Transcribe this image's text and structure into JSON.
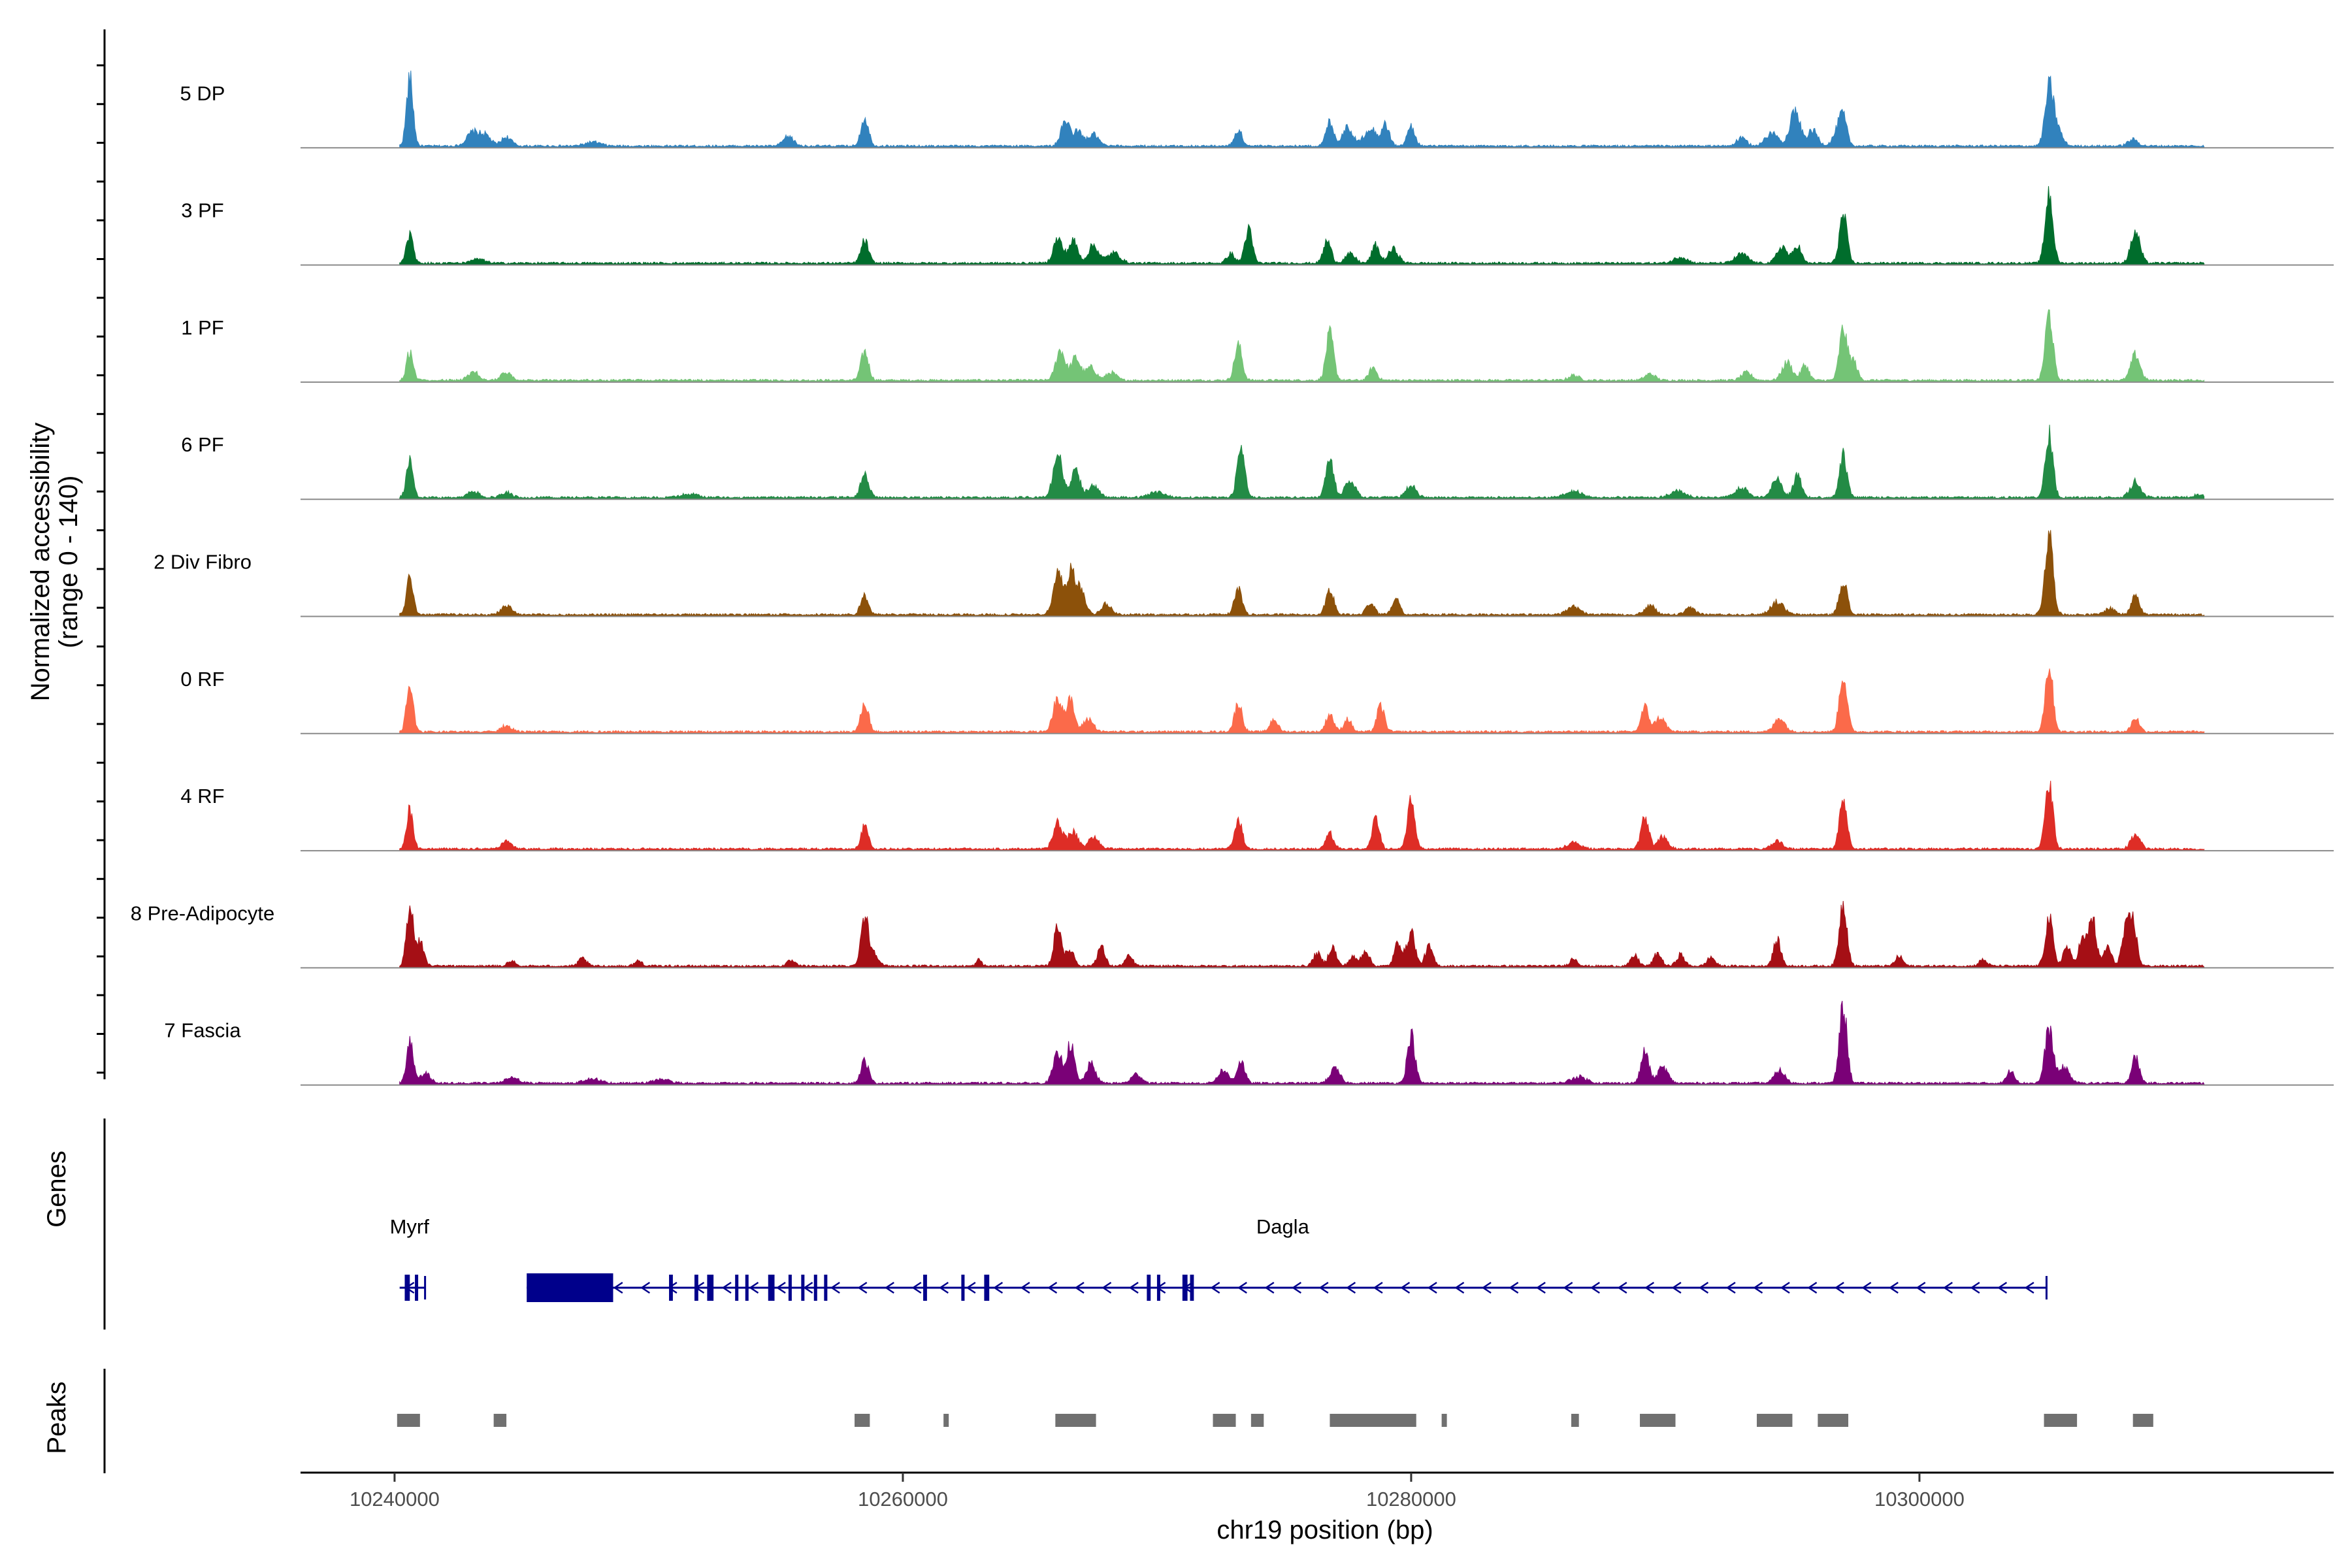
{
  "chart_data": {
    "type": "area",
    "title": "",
    "ylabel": "Normalized accessibility\n(range 0 - 140)",
    "ylim": [
      0,
      140
    ],
    "xlabel": "chr19 position (bp)",
    "xlim": [
      10236300,
      10316300
    ],
    "x_ticks": [
      10240000,
      10260000,
      10280000,
      10300000
    ],
    "x_tick_labels": [
      "10240000",
      "10260000",
      "10280000",
      "10300000"
    ],
    "data_range": [
      10240200,
      10311200
    ],
    "tracks": [
      {
        "name": "5 DP",
        "color": "#3182bd",
        "peaks": [
          [
            10240600,
            105,
            130
          ],
          [
            10243100,
            22,
            250
          ],
          [
            10243600,
            15,
            200
          ],
          [
            10244400,
            14,
            200
          ],
          [
            10247800,
            6,
            300
          ],
          [
            10255500,
            15,
            200
          ],
          [
            10258500,
            45,
            150
          ],
          [
            10266400,
            38,
            180
          ],
          [
            10266900,
            22,
            180
          ],
          [
            10267500,
            18,
            200
          ],
          [
            10273200,
            25,
            150
          ],
          [
            10276800,
            38,
            150
          ],
          [
            10277500,
            30,
            200
          ],
          [
            10278400,
            28,
            250
          ],
          [
            10279000,
            32,
            150
          ],
          [
            10280000,
            30,
            150
          ],
          [
            10293000,
            12,
            200
          ],
          [
            10294200,
            20,
            250
          ],
          [
            10295100,
            55,
            200
          ],
          [
            10295800,
            24,
            200
          ],
          [
            10296800,
            22,
            200
          ],
          [
            10297000,
            36,
            150
          ],
          [
            10305100,
            85,
            160
          ],
          [
            10305400,
            28,
            200
          ],
          [
            10308400,
            10,
            200
          ]
        ]
      },
      {
        "name": "3 PF",
        "color": "#006d2c",
        "peaks": [
          [
            10240600,
            45,
            130
          ],
          [
            10243300,
            6,
            250
          ],
          [
            10258500,
            35,
            150
          ],
          [
            10266100,
            38,
            180
          ],
          [
            10266700,
            35,
            180
          ],
          [
            10267500,
            28,
            200
          ],
          [
            10268300,
            16,
            250
          ],
          [
            10272900,
            15,
            150
          ],
          [
            10273600,
            52,
            150
          ],
          [
            10276700,
            35,
            150
          ],
          [
            10277600,
            14,
            200
          ],
          [
            10278600,
            28,
            150
          ],
          [
            10279300,
            22,
            200
          ],
          [
            10290600,
            10,
            250
          ],
          [
            10293000,
            14,
            250
          ],
          [
            10294600,
            26,
            200
          ],
          [
            10295200,
            28,
            150
          ],
          [
            10297000,
            75,
            150
          ],
          [
            10305100,
            110,
            150
          ],
          [
            10308500,
            48,
            180
          ]
        ]
      },
      {
        "name": "1 PF",
        "color": "#74c476",
        "peaks": [
          [
            10240600,
            45,
            130
          ],
          [
            10243100,
            14,
            200
          ],
          [
            10244400,
            12,
            200
          ],
          [
            10258500,
            45,
            150
          ],
          [
            10266200,
            48,
            180
          ],
          [
            10266800,
            35,
            180
          ],
          [
            10267400,
            20,
            200
          ],
          [
            10268200,
            12,
            200
          ],
          [
            10273200,
            55,
            150
          ],
          [
            10276800,
            72,
            150
          ],
          [
            10278500,
            20,
            150
          ],
          [
            10286400,
            8,
            200
          ],
          [
            10289400,
            10,
            200
          ],
          [
            10293200,
            12,
            200
          ],
          [
            10294800,
            28,
            200
          ],
          [
            10295500,
            24,
            150
          ],
          [
            10297000,
            80,
            150
          ],
          [
            10297400,
            30,
            150
          ],
          [
            10305100,
            105,
            150
          ],
          [
            10308500,
            40,
            180
          ]
        ]
      },
      {
        "name": "6 PF",
        "color": "#238b45",
        "peaks": [
          [
            10240600,
            60,
            130
          ],
          [
            10243100,
            10,
            200
          ],
          [
            10244400,
            8,
            200
          ],
          [
            10251600,
            6,
            300
          ],
          [
            10258500,
            40,
            150
          ],
          [
            10266100,
            70,
            180
          ],
          [
            10266800,
            40,
            180
          ],
          [
            10267500,
            20,
            200
          ],
          [
            10270000,
            8,
            300
          ],
          [
            10273300,
            75,
            150
          ],
          [
            10276800,
            62,
            150
          ],
          [
            10277600,
            26,
            200
          ],
          [
            10280000,
            18,
            200
          ],
          [
            10286400,
            10,
            300
          ],
          [
            10290500,
            10,
            300
          ],
          [
            10293000,
            15,
            250
          ],
          [
            10294400,
            30,
            200
          ],
          [
            10295200,
            38,
            150
          ],
          [
            10297000,
            65,
            150
          ],
          [
            10305100,
            100,
            150
          ],
          [
            10308500,
            25,
            200
          ],
          [
            10311000,
            5,
            200
          ]
        ]
      },
      {
        "name": "2 Div Fibro",
        "color": "#8c510a",
        "peaks": [
          [
            10240600,
            55,
            130
          ],
          [
            10244400,
            14,
            200
          ],
          [
            10258500,
            30,
            150
          ],
          [
            10266100,
            65,
            180
          ],
          [
            10266600,
            70,
            150
          ],
          [
            10267000,
            40,
            180
          ],
          [
            10268000,
            16,
            200
          ],
          [
            10273200,
            40,
            150
          ],
          [
            10276800,
            42,
            150
          ],
          [
            10278400,
            20,
            150
          ],
          [
            10279400,
            28,
            150
          ],
          [
            10286400,
            12,
            250
          ],
          [
            10289400,
            14,
            200
          ],
          [
            10291000,
            10,
            200
          ],
          [
            10294400,
            20,
            250
          ],
          [
            10297000,
            55,
            150
          ],
          [
            10305100,
            125,
            160
          ],
          [
            10307500,
            10,
            200
          ],
          [
            10308500,
            35,
            150
          ]
        ]
      },
      {
        "name": "0 RF",
        "color": "#fb6a4a",
        "peaks": [
          [
            10240600,
            70,
            130
          ],
          [
            10244400,
            10,
            200
          ],
          [
            10258500,
            45,
            150
          ],
          [
            10266100,
            55,
            180
          ],
          [
            10266600,
            48,
            150
          ],
          [
            10267300,
            20,
            200
          ],
          [
            10273200,
            45,
            150
          ],
          [
            10274600,
            20,
            150
          ],
          [
            10276800,
            28,
            150
          ],
          [
            10277500,
            20,
            150
          ],
          [
            10278800,
            40,
            150
          ],
          [
            10289200,
            38,
            150
          ],
          [
            10289800,
            22,
            200
          ],
          [
            10294500,
            22,
            200
          ],
          [
            10297000,
            90,
            150
          ],
          [
            10305100,
            105,
            150
          ],
          [
            10308500,
            22,
            150
          ]
        ]
      },
      {
        "name": "4 RF",
        "color": "#de2d26",
        "peaks": [
          [
            10240600,
            60,
            130
          ],
          [
            10244400,
            12,
            200
          ],
          [
            10258500,
            35,
            150
          ],
          [
            10266100,
            40,
            180
          ],
          [
            10266700,
            28,
            180
          ],
          [
            10267500,
            18,
            200
          ],
          [
            10273200,
            45,
            150
          ],
          [
            10276800,
            25,
            150
          ],
          [
            10278600,
            45,
            150
          ],
          [
            10280000,
            75,
            150
          ],
          [
            10286400,
            10,
            250
          ],
          [
            10289200,
            48,
            150
          ],
          [
            10289900,
            20,
            200
          ],
          [
            10294400,
            12,
            200
          ],
          [
            10297000,
            80,
            150
          ],
          [
            10305100,
            100,
            150
          ],
          [
            10308500,
            22,
            180
          ]
        ]
      },
      {
        "name": "8 Pre-Adipocyte",
        "color": "#a50f15",
        "peaks": [
          [
            10240600,
            95,
            130
          ],
          [
            10241000,
            40,
            150
          ],
          [
            10244600,
            8,
            150
          ],
          [
            10247400,
            12,
            150
          ],
          [
            10249600,
            8,
            150
          ],
          [
            10255600,
            8,
            150
          ],
          [
            10258500,
            80,
            150
          ],
          [
            10258900,
            20,
            150
          ],
          [
            10263000,
            10,
            100
          ],
          [
            10266100,
            65,
            150
          ],
          [
            10266600,
            25,
            150
          ],
          [
            10267800,
            30,
            150
          ],
          [
            10268900,
            15,
            150
          ],
          [
            10276300,
            20,
            150
          ],
          [
            10276900,
            30,
            150
          ],
          [
            10277700,
            14,
            150
          ],
          [
            10278200,
            25,
            150
          ],
          [
            10279500,
            38,
            150
          ],
          [
            10280000,
            55,
            150
          ],
          [
            10280700,
            30,
            150
          ],
          [
            10286400,
            12,
            150
          ],
          [
            10288800,
            16,
            150
          ],
          [
            10289700,
            20,
            150
          ],
          [
            10290600,
            18,
            150
          ],
          [
            10291800,
            14,
            150
          ],
          [
            10294400,
            40,
            150
          ],
          [
            10297000,
            100,
            150
          ],
          [
            10299200,
            15,
            150
          ],
          [
            10302500,
            10,
            150
          ],
          [
            10305100,
            75,
            150
          ],
          [
            10305800,
            30,
            150
          ],
          [
            10306400,
            40,
            150
          ],
          [
            10306800,
            75,
            150
          ],
          [
            10307400,
            30,
            150
          ],
          [
            10308100,
            50,
            150
          ],
          [
            10308400,
            68,
            150
          ]
        ]
      },
      {
        "name": "7 Fascia",
        "color": "#7a0177",
        "peaks": [
          [
            10240600,
            65,
            130
          ],
          [
            10241200,
            15,
            200
          ],
          [
            10244600,
            8,
            300
          ],
          [
            10247800,
            8,
            300
          ],
          [
            10250500,
            6,
            300
          ],
          [
            10258500,
            35,
            150
          ],
          [
            10266100,
            45,
            180
          ],
          [
            10266600,
            60,
            150
          ],
          [
            10267400,
            30,
            180
          ],
          [
            10269200,
            14,
            200
          ],
          [
            10272600,
            20,
            200
          ],
          [
            10273300,
            35,
            150
          ],
          [
            10277000,
            22,
            200
          ],
          [
            10280000,
            75,
            150
          ],
          [
            10286600,
            10,
            300
          ],
          [
            10289200,
            50,
            150
          ],
          [
            10289900,
            25,
            200
          ],
          [
            10294500,
            20,
            200
          ],
          [
            10297000,
            120,
            150
          ],
          [
            10303600,
            20,
            150
          ],
          [
            10305100,
            85,
            160
          ],
          [
            10305700,
            25,
            200
          ],
          [
            10308500,
            40,
            150
          ]
        ]
      }
    ],
    "genes": [
      {
        "name": "Myrf",
        "start": 10240200,
        "end": 10241200,
        "strand": "-",
        "exons": [
          [
            10240400,
            10240600
          ],
          [
            10240800,
            10240900
          ]
        ]
      },
      {
        "name": "Dagla",
        "start": 10245200,
        "end": 10305000,
        "strand": "-",
        "exons": [
          [
            10245200,
            10248600
          ],
          [
            10250800,
            10250950
          ],
          [
            10251800,
            10251950
          ],
          [
            10252300,
            10252550
          ],
          [
            10253400,
            10253500
          ],
          [
            10253800,
            10253900
          ],
          [
            10254700,
            10254950
          ],
          [
            10255500,
            10255600
          ],
          [
            10256000,
            10256100
          ],
          [
            10256500,
            10256600
          ],
          [
            10256900,
            10257000
          ],
          [
            10260800,
            10260950
          ],
          [
            10262300,
            10262400
          ],
          [
            10263200,
            10263400
          ],
          [
            10269600,
            10269750
          ],
          [
            10270000,
            10270100
          ],
          [
            10271000,
            10271200
          ],
          [
            10271300,
            10271450
          ]
        ]
      }
    ],
    "peaks_track": [
      [
        10240100,
        10241000
      ],
      [
        10243900,
        10244400
      ],
      [
        10258100,
        10258700
      ],
      [
        10261600,
        10261800
      ],
      [
        10266000,
        10267600
      ],
      [
        10272200,
        10273100
      ],
      [
        10273700,
        10274200
      ],
      [
        10276800,
        10280200
      ],
      [
        10281200,
        10281400
      ],
      [
        10286300,
        10286600
      ],
      [
        10289000,
        10290400
      ],
      [
        10293600,
        10295000
      ],
      [
        10296000,
        10297200
      ],
      [
        10304900,
        10306200
      ],
      [
        10308400,
        10309200
      ]
    ],
    "panel_labels": [
      "Genes",
      "Peaks"
    ]
  }
}
